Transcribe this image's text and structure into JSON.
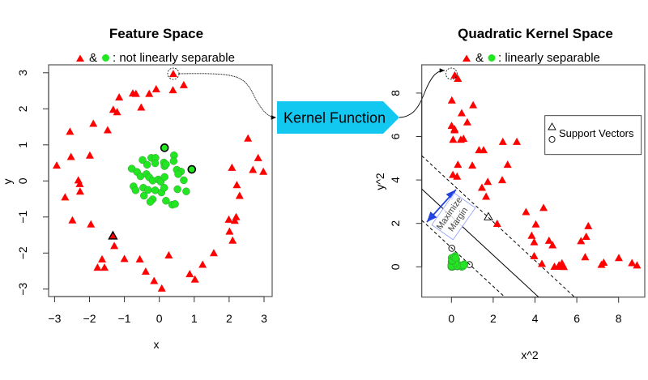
{
  "kernel_label": "Kernel Function",
  "colors": {
    "class_triangle": "#ff0000",
    "class_circle": "#22e622",
    "kernel_arrow": "#12c8f0",
    "margin_arrow": "#2244dd",
    "margin_box": "#8899ff"
  },
  "chart_data": [
    {
      "type": "scatter",
      "title": "Feature Space",
      "subtitle_parts": [
        "&",
        ": not linearly separable"
      ],
      "xlabel": "x",
      "ylabel": "y",
      "xlim": [
        -3.2,
        3.2
      ],
      "ylim": [
        -3.2,
        3.2
      ],
      "xticks": [
        "-3",
        "-2",
        "-1",
        "0",
        "1",
        "2",
        "3"
      ],
      "yticks": [
        "-3",
        "-2",
        "-1",
        "0",
        "1",
        "2",
        "3"
      ],
      "grid": false,
      "series": [
        {
          "marker": "triangle",
          "color": "#ff0000",
          "points": [
            [
              0.4,
              2.97
            ],
            [
              0.7,
              2.66
            ],
            [
              0.39,
              2.52
            ],
            [
              -0.09,
              2.55
            ],
            [
              -0.29,
              2.42
            ],
            [
              -0.76,
              2.43
            ],
            [
              -0.67,
              2.42
            ],
            [
              -1.15,
              2.32
            ],
            [
              -0.52,
              2.04
            ],
            [
              -1.32,
              1.98
            ],
            [
              -1.21,
              1.91
            ],
            [
              -1.89,
              1.59
            ],
            [
              -1.48,
              1.41
            ],
            [
              -2.56,
              1.37
            ],
            [
              -2.53,
              0.67
            ],
            [
              -1.99,
              0.71
            ],
            [
              -2.94,
              0.43
            ],
            [
              -2.32,
              0.02
            ],
            [
              -2.28,
              -0.08
            ],
            [
              -2.27,
              -0.29
            ],
            [
              -2.7,
              -0.45
            ],
            [
              -2.49,
              -1.09
            ],
            [
              -1.96,
              -1.2
            ],
            [
              -1.33,
              -1.52
            ],
            [
              -1.29,
              -1.8
            ],
            [
              -1.64,
              -2.17
            ],
            [
              -1.77,
              -2.4
            ],
            [
              -1.57,
              -2.4
            ],
            [
              -1.0,
              -2.16
            ],
            [
              -0.56,
              -2.17
            ],
            [
              -0.39,
              -2.51
            ],
            [
              -0.15,
              -2.77
            ],
            [
              0.07,
              -2.98
            ],
            [
              0.27,
              -2.06
            ],
            [
              0.87,
              -2.58
            ],
            [
              1.02,
              -2.73
            ],
            [
              1.24,
              -2.32
            ],
            [
              1.56,
              -2.0
            ],
            [
              2.1,
              -1.65
            ],
            [
              2.01,
              -1.4
            ],
            [
              1.99,
              -1.07
            ],
            [
              2.16,
              -1.1
            ],
            [
              2.2,
              -1.0
            ],
            [
              2.3,
              -0.41
            ],
            [
              2.22,
              -0.11
            ],
            [
              2.08,
              0.37
            ],
            [
              2.68,
              0.31
            ],
            [
              2.98,
              0.26
            ],
            [
              2.83,
              0.64
            ],
            [
              2.54,
              1.18
            ]
          ],
          "support_vectors": [
            [
              -1.33,
              -1.52
            ]
          ],
          "highlighted": [
            [
              0.4,
              2.97
            ]
          ]
        },
        {
          "marker": "circle",
          "color": "#22e622",
          "points": [
            [
              0.15,
              0.92
            ],
            [
              0.93,
              0.32
            ],
            [
              -0.48,
              0.58
            ],
            [
              -0.23,
              0.64
            ],
            [
              -0.11,
              0.64
            ],
            [
              -0.35,
              0.45
            ],
            [
              -0.12,
              0.49
            ],
            [
              0.13,
              0.51
            ],
            [
              0.42,
              0.71
            ],
            [
              0.41,
              0.55
            ],
            [
              0.15,
              0.41
            ],
            [
              0.19,
              0.46
            ],
            [
              -0.79,
              0.34
            ],
            [
              -0.64,
              0.25
            ],
            [
              -0.54,
              0.13
            ],
            [
              -0.37,
              0.19
            ],
            [
              -0.29,
              0.1
            ],
            [
              -0.19,
              0.01
            ],
            [
              -0.03,
              0.04
            ],
            [
              0.04,
              -0.02
            ],
            [
              0.15,
              0.11
            ],
            [
              0.5,
              0.31
            ],
            [
              0.62,
              0.26
            ],
            [
              0.54,
              0.19
            ],
            [
              0.7,
              0.02
            ],
            [
              -0.74,
              -0.15
            ],
            [
              -0.68,
              -0.26
            ],
            [
              -0.46,
              -0.19
            ],
            [
              -0.32,
              -0.25
            ],
            [
              -0.12,
              -0.26
            ],
            [
              0.06,
              -0.32
            ],
            [
              0.14,
              -0.19
            ],
            [
              0.52,
              -0.23
            ],
            [
              0.77,
              -0.29
            ],
            [
              -0.44,
              -0.41
            ],
            [
              -0.19,
              -0.51
            ],
            [
              -0.26,
              -0.58
            ],
            [
              0.19,
              -0.55
            ],
            [
              0.37,
              -0.66
            ],
            [
              0.45,
              -0.64
            ]
          ],
          "support_vectors": [
            [
              0.15,
              0.92
            ],
            [
              0.93,
              0.32
            ]
          ]
        }
      ]
    },
    {
      "type": "scatter",
      "title": "Quadratic Kernel Space",
      "subtitle_parts": [
        "&",
        ": linearly separable"
      ],
      "xlabel": "x^2",
      "ylabel": "y^2",
      "xlim": [
        -1.4,
        9.3
      ],
      "ylim": [
        -1.4,
        9.3
      ],
      "xticks": [
        "0",
        "2",
        "4",
        "6",
        "8"
      ],
      "yticks": [
        "0",
        "2",
        "4",
        "6",
        "8"
      ],
      "grid": false,
      "legend": {
        "position": "top-right",
        "entries": [
          "Support Vectors"
        ]
      },
      "annotation": [
        "Maximize",
        "Margin"
      ],
      "decision_boundary": {
        "intercept": 2.32,
        "slope": -0.89
      },
      "margins": [
        {
          "intercept": 0.88,
          "slope": -0.89
        },
        {
          "intercept": 3.85,
          "slope": -0.89
        }
      ],
      "series": [
        {
          "marker": "triangle",
          "color": "#ff0000",
          "points": [
            [
              0.16,
              8.82
            ],
            [
              0.49,
              7.08
            ],
            [
              0.15,
              6.35
            ],
            [
              0.01,
              6.5
            ],
            [
              0.08,
              5.86
            ],
            [
              0.58,
              5.9
            ],
            [
              0.45,
              5.86
            ],
            [
              1.32,
              5.38
            ],
            [
              0.27,
              4.16
            ],
            [
              1.74,
              3.92
            ],
            [
              1.46,
              3.65
            ],
            [
              3.57,
              2.53
            ],
            [
              2.19,
              1.99
            ],
            [
              6.55,
              1.88
            ],
            [
              6.4,
              0.45
            ],
            [
              3.96,
              0.5
            ],
            [
              8.64,
              0.18
            ],
            [
              5.38,
              0.0
            ],
            [
              5.2,
              0.01
            ],
            [
              5.15,
              0.08
            ],
            [
              7.29,
              0.2
            ],
            [
              6.2,
              1.19
            ],
            [
              3.84,
              1.44
            ],
            [
              1.77,
              2.31
            ],
            [
              1.66,
              3.24
            ],
            [
              2.69,
              4.71
            ],
            [
              3.13,
              5.76
            ],
            [
              2.46,
              5.76
            ],
            [
              1.0,
              4.67
            ],
            [
              0.31,
              4.71
            ],
            [
              0.15,
              6.3
            ],
            [
              0.02,
              7.67
            ],
            [
              0.31,
              8.67
            ],
            [
              0.07,
              4.24
            ],
            [
              0.76,
              6.66
            ],
            [
              1.04,
              7.45
            ],
            [
              1.54,
              5.38
            ],
            [
              2.43,
              4.0
            ],
            [
              4.41,
              2.72
            ],
            [
              4.04,
              1.96
            ],
            [
              3.96,
              1.14
            ],
            [
              4.67,
              1.21
            ],
            [
              4.84,
              1.0
            ],
            [
              5.29,
              0.17
            ],
            [
              4.93,
              0.01
            ],
            [
              4.33,
              0.14
            ],
            [
              7.18,
              0.1
            ],
            [
              8.88,
              0.07
            ],
            [
              8.01,
              0.41
            ],
            [
              6.45,
              1.39
            ]
          ],
          "support_vectors": [
            [
              1.77,
              2.31
            ]
          ],
          "highlighted": [
            [
              0.16,
              8.82
            ]
          ]
        },
        {
          "marker": "circle",
          "color": "#22e622",
          "points": [
            [
              0.02,
              0.85
            ],
            [
              0.86,
              0.1
            ],
            [
              0.23,
              0.34
            ],
            [
              0.05,
              0.41
            ],
            [
              0.01,
              0.41
            ],
            [
              0.12,
              0.2
            ],
            [
              0.01,
              0.24
            ],
            [
              0.02,
              0.26
            ],
            [
              0.18,
              0.5
            ],
            [
              0.17,
              0.3
            ],
            [
              0.02,
              0.17
            ],
            [
              0.04,
              0.21
            ],
            [
              0.62,
              0.12
            ],
            [
              0.41,
              0.06
            ],
            [
              0.29,
              0.02
            ],
            [
              0.14,
              0.04
            ],
            [
              0.08,
              0.01
            ],
            [
              0.04,
              0.0
            ],
            [
              0.0,
              0.0
            ],
            [
              0.0,
              0.0
            ],
            [
              0.02,
              0.01
            ],
            [
              0.25,
              0.1
            ],
            [
              0.38,
              0.07
            ],
            [
              0.29,
              0.04
            ],
            [
              0.49,
              0.0
            ],
            [
              0.55,
              0.02
            ],
            [
              0.46,
              0.07
            ],
            [
              0.21,
              0.04
            ],
            [
              0.1,
              0.06
            ],
            [
              0.01,
              0.07
            ],
            [
              0.0,
              0.1
            ],
            [
              0.02,
              0.04
            ],
            [
              0.27,
              0.05
            ],
            [
              0.59,
              0.08
            ],
            [
              0.19,
              0.17
            ],
            [
              0.04,
              0.26
            ],
            [
              0.07,
              0.34
            ],
            [
              0.04,
              0.3
            ],
            [
              0.14,
              0.44
            ],
            [
              0.2,
              0.41
            ]
          ],
          "support_vectors": [
            [
              0.02,
              0.85
            ],
            [
              0.86,
              0.1
            ]
          ]
        }
      ]
    }
  ]
}
